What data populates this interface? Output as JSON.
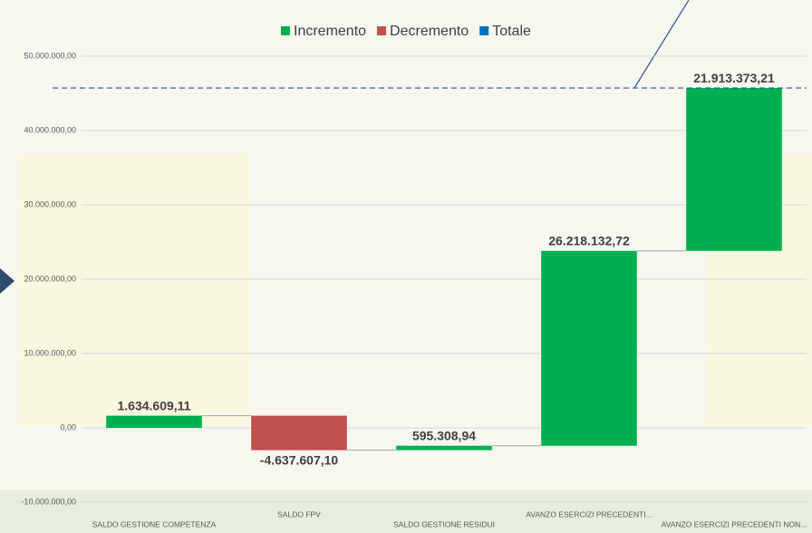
{
  "chart_data": {
    "type": "waterfall",
    "categories": [
      "SALDO GESTIONE COMPETENZA",
      "SALDO FPV",
      "SALDO GESTIONE RESIDUI",
      "AVANZO ESERCIZI PRECEDENTI...",
      "AVANZO ESERCIZI PRECEDENTI NON..."
    ],
    "values": [
      1634609.11,
      -4637607.1,
      595308.94,
      26218132.72,
      21913373.21
    ],
    "value_labels": [
      "1.634.609,11",
      "-4.637.607,10",
      "595.308,94",
      "26.218.132,72",
      "21.913.373,21"
    ],
    "legend": [
      {
        "name": "Incremento",
        "color": "#00b050"
      },
      {
        "name": "Decremento",
        "color": "#c0504d"
      },
      {
        "name": "Totale",
        "color": "#0070c0"
      }
    ],
    "ylim": [
      -10000000,
      50000000
    ],
    "yticks": [
      {
        "value": -10000000,
        "label": "-10.000.000,00"
      },
      {
        "value": 0,
        "label": "0,00"
      },
      {
        "value": 10000000,
        "label": "10.000.000,00"
      },
      {
        "value": 20000000,
        "label": "20.000.000,00"
      },
      {
        "value": 30000000,
        "label": "30.000.000,00"
      },
      {
        "value": 40000000,
        "label": "40.000.000,00"
      },
      {
        "value": 50000000,
        "label": "50.000.000,00"
      }
    ],
    "grid": true
  }
}
